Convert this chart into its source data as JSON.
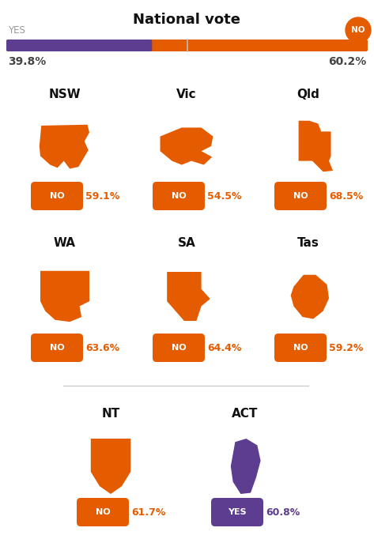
{
  "title": "National vote",
  "yes_label": "YES",
  "no_label": "NO",
  "yes_pct": 39.8,
  "no_pct": 60.2,
  "yes_color": "#5c3d8f",
  "no_color": "#e55c00",
  "bg_color": "#ffffff",
  "gray_text": "#999999",
  "dark_text": "#111111",
  "pct_text": "#444444",
  "states": [
    {
      "name": "NSW",
      "vote": "NO",
      "pct": "59.1%",
      "col": 0,
      "row": 0
    },
    {
      "name": "Vic",
      "vote": "NO",
      "pct": "54.5%",
      "col": 1,
      "row": 0
    },
    {
      "name": "Qld",
      "vote": "NO",
      "pct": "68.5%",
      "col": 2,
      "row": 0
    },
    {
      "name": "WA",
      "vote": "NO",
      "pct": "63.6%",
      "col": 0,
      "row": 1
    },
    {
      "name": "SA",
      "vote": "NO",
      "pct": "64.4%",
      "col": 1,
      "row": 1
    },
    {
      "name": "Tas",
      "vote": "NO",
      "pct": "59.2%",
      "col": 2,
      "row": 1
    },
    {
      "name": "NT",
      "vote": "NO",
      "pct": "61.7%",
      "col": 0,
      "row": 2
    },
    {
      "name": "ACT",
      "vote": "YES",
      "pct": "60.8%",
      "col": 1,
      "row": 2
    }
  ]
}
